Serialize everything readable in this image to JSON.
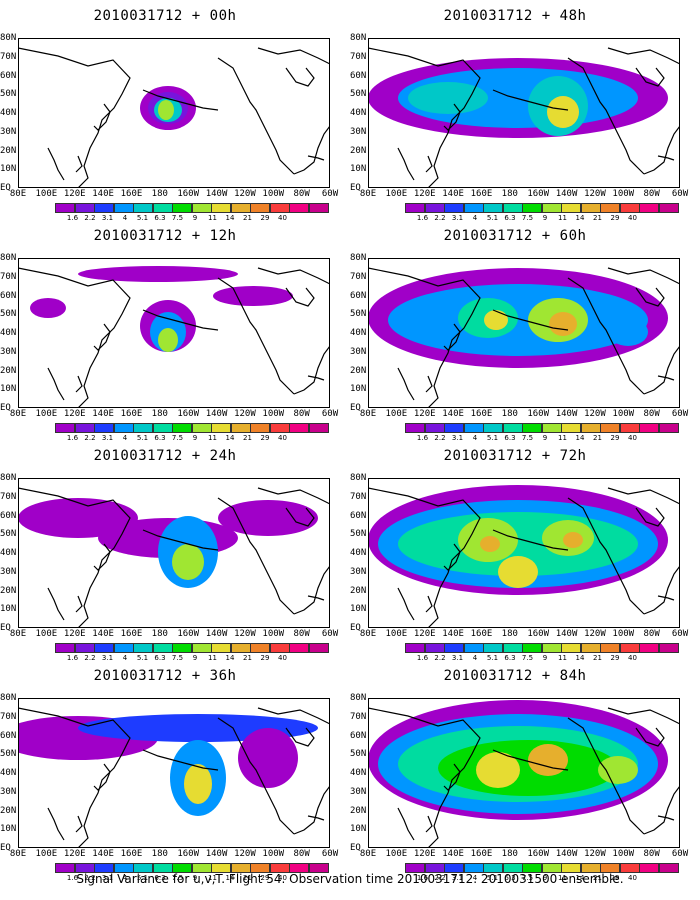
{
  "panels": [
    {
      "title": "2010031712 + 00h",
      "variant": 0
    },
    {
      "title": "2010031712 + 48h",
      "variant": 4
    },
    {
      "title": "2010031712 + 12h",
      "variant": 1
    },
    {
      "title": "2010031712 + 60h",
      "variant": 5
    },
    {
      "title": "2010031712 + 24h",
      "variant": 2
    },
    {
      "title": "2010031712 + 72h",
      "variant": 6
    },
    {
      "title": "2010031712 + 36h",
      "variant": 3
    },
    {
      "title": "2010031712 + 84h",
      "variant": 7
    }
  ],
  "lat_labels": [
    "80N",
    "70N",
    "60N",
    "50N",
    "40N",
    "30N",
    "20N",
    "10N",
    "EQ"
  ],
  "lon_labels": [
    "80E",
    "100E",
    "120E",
    "140E",
    "160E",
    "180",
    "160W",
    "140W",
    "120W",
    "100W",
    "80W",
    "60W"
  ],
  "legend": {
    "labels": [
      "1.6",
      "2.2",
      "3.1",
      "4",
      "5.1",
      "6.3",
      "7.5",
      "9",
      "11",
      "14",
      "21",
      "29",
      "40"
    ],
    "colors": [
      "#a000c8",
      "#7814dc",
      "#1e3cff",
      "#0096ff",
      "#00c8c8",
      "#00dca0",
      "#00dc00",
      "#a0e632",
      "#e6dc32",
      "#e6af2d",
      "#f08228",
      "#fa3c3c",
      "#f00082",
      "#c8008c"
    ]
  },
  "footer": "Signal Variance for u,v,T. Flight 54. Observation time 2010031712. 2010031500 ensemble."
}
